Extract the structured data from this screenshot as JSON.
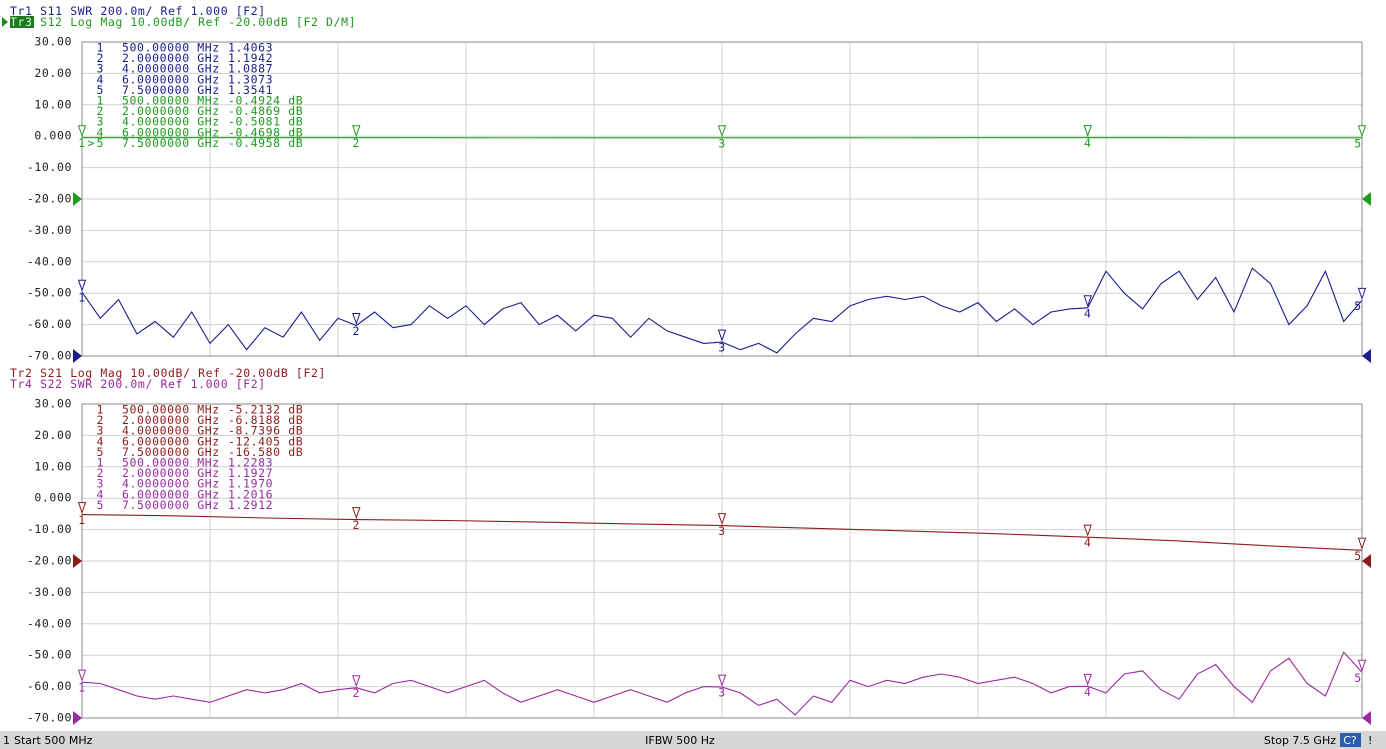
{
  "chart_data": [
    {
      "type": "line",
      "xlim": [
        0.5,
        7.5
      ],
      "ylim": [
        -70,
        30
      ],
      "yticks": [
        {
          "value": 30,
          "label": "30.00"
        },
        {
          "value": 20,
          "label": "20.00"
        },
        {
          "value": 10,
          "label": "10.00"
        },
        {
          "value": 0,
          "label": "0.000"
        },
        {
          "value": -10,
          "label": "-10.00"
        },
        {
          "value": -20,
          "label": "-20.00"
        },
        {
          "value": -30,
          "label": "-30.00"
        },
        {
          "value": -40,
          "label": "-40.00"
        },
        {
          "value": -50,
          "label": "-50.00"
        },
        {
          "value": -60,
          "label": "-60.00"
        },
        {
          "value": -70,
          "label": "-70.00"
        }
      ],
      "y2lim": [
        1.0,
        3.0
      ],
      "grid": true,
      "series": [
        {
          "trace": "Tr1",
          "name": "S11",
          "format": "SWR 200.0m/ Ref 1.000 [F2]",
          "color": "#1c1c8c",
          "axis": "y2",
          "ref": 1.0,
          "x": [
            0.5,
            0.6,
            0.7,
            0.8,
            0.9,
            1.0,
            1.1,
            1.2,
            1.3,
            1.4,
            1.5,
            1.6,
            1.7,
            1.8,
            1.9,
            2.0,
            2.1,
            2.2,
            2.3,
            2.4,
            2.5,
            2.6,
            2.7,
            2.8,
            2.9,
            3.0,
            3.1,
            3.2,
            3.3,
            3.4,
            3.5,
            3.6,
            3.7,
            3.8,
            3.9,
            4.0,
            4.1,
            4.2,
            4.3,
            4.4,
            4.5,
            4.6,
            4.7,
            4.8,
            4.9,
            5.0,
            5.1,
            5.2,
            5.3,
            5.4,
            5.5,
            5.6,
            5.7,
            5.8,
            5.9,
            6.0,
            6.1,
            6.2,
            6.3,
            6.4,
            6.5,
            6.6,
            6.7,
            6.8,
            6.9,
            7.0,
            7.1,
            7.2,
            7.3,
            7.4,
            7.5
          ],
          "values": [
            1.4063,
            1.24,
            1.36,
            1.14,
            1.22,
            1.12,
            1.28,
            1.08,
            1.2,
            1.04,
            1.18,
            1.12,
            1.28,
            1.1,
            1.24,
            1.1942,
            1.28,
            1.18,
            1.2,
            1.32,
            1.24,
            1.32,
            1.2,
            1.3,
            1.34,
            1.2,
            1.26,
            1.16,
            1.26,
            1.24,
            1.12,
            1.24,
            1.16,
            1.12,
            1.08,
            1.0887,
            1.04,
            1.08,
            1.02,
            1.14,
            1.24,
            1.22,
            1.32,
            1.36,
            1.38,
            1.36,
            1.38,
            1.32,
            1.28,
            1.34,
            1.22,
            1.3,
            1.2,
            1.28,
            1.3,
            1.3073,
            1.54,
            1.4,
            1.3,
            1.46,
            1.54,
            1.36,
            1.5,
            1.28,
            1.56,
            1.46,
            1.2,
            1.32,
            1.54,
            1.22,
            1.3541
          ],
          "markers": [
            {
              "id": "1",
              "freq": "500.00000 MHz",
              "value": "1.4063"
            },
            {
              "id": "2",
              "freq": "2.0000000 GHz",
              "value": "1.1942"
            },
            {
              "id": "3",
              "freq": "4.0000000 GHz",
              "value": "1.0887"
            },
            {
              "id": "4",
              "freq": "6.0000000 GHz",
              "value": "1.3073"
            },
            {
              "id": "5",
              "freq": "7.5000000 GHz",
              "value": "1.3541"
            }
          ]
        },
        {
          "trace": "Tr3",
          "name": "S12",
          "format": "Log Mag 10.00dB/ Ref -20.00dB [F2 D/M]",
          "color": "#1f9a1f",
          "active": true,
          "ref": -20,
          "active_prefix": ">",
          "x": [
            0.5,
            2.0,
            4.0,
            6.0,
            7.5
          ],
          "values": [
            -0.4924,
            -0.4869,
            -0.5081,
            -0.4698,
            -0.4958
          ],
          "markers": [
            {
              "id": "1",
              "freq": "500.00000 MHz",
              "value": "-0.4924 dB"
            },
            {
              "id": "2",
              "freq": "2.0000000 GHz",
              "value": "-0.4869 dB"
            },
            {
              "id": "3",
              "freq": "4.0000000 GHz",
              "value": "-0.5081 dB"
            },
            {
              "id": "4",
              "freq": "6.0000000 GHz",
              "value": "-0.4698 dB"
            },
            {
              "id": "5",
              "freq": "7.5000000 GHz",
              "value": "-0.4958 dB"
            }
          ]
        }
      ]
    },
    {
      "type": "line",
      "xlim": [
        0.5,
        7.5
      ],
      "ylim": [
        -70,
        30
      ],
      "yticks": [
        {
          "value": 30,
          "label": "30.00"
        },
        {
          "value": 20,
          "label": "20.00"
        },
        {
          "value": 10,
          "label": "10.00"
        },
        {
          "value": 0,
          "label": "0.000"
        },
        {
          "value": -10,
          "label": "-10.00"
        },
        {
          "value": -20,
          "label": "-20.00"
        },
        {
          "value": -30,
          "label": "-30.00"
        },
        {
          "value": -40,
          "label": "-40.00"
        },
        {
          "value": -50,
          "label": "-50.00"
        },
        {
          "value": -60,
          "label": "-60.00"
        },
        {
          "value": -70,
          "label": "-70.00"
        }
      ],
      "y2lim": [
        1.0,
        3.0
      ],
      "grid": true,
      "series": [
        {
          "trace": "Tr2",
          "name": "S21",
          "format": "Log Mag 10.00dB/ Ref -20.00dB [F2]",
          "color": "#8c1c1c",
          "ref": -20,
          "x": [
            0.5,
            1.0,
            1.5,
            2.0,
            2.5,
            3.0,
            3.5,
            4.0,
            4.5,
            5.0,
            5.5,
            6.0,
            6.5,
            7.0,
            7.5
          ],
          "values": [
            -5.2132,
            -5.6,
            -6.3,
            -6.8188,
            -7.1,
            -7.6,
            -8.2,
            -8.7396,
            -9.6,
            -10.4,
            -11.3,
            -12.405,
            -13.6,
            -15.2,
            -16.58
          ],
          "markers": [
            {
              "id": "1",
              "freq": "500.00000 MHz",
              "value": "-5.2132 dB"
            },
            {
              "id": "2",
              "freq": "2.0000000 GHz",
              "value": "-6.8188 dB"
            },
            {
              "id": "3",
              "freq": "4.0000000 GHz",
              "value": "-8.7396 dB"
            },
            {
              "id": "4",
              "freq": "6.0000000 GHz",
              "value": "-12.405 dB"
            },
            {
              "id": "5",
              "freq": "7.5000000 GHz",
              "value": "-16.580 dB"
            }
          ]
        },
        {
          "trace": "Tr4",
          "name": "S22",
          "format": "SWR 200.0m/ Ref 1.000 [F2]",
          "color": "#9a2aa2",
          "axis": "y2",
          "ref": 1.0,
          "x": [
            0.5,
            0.6,
            0.7,
            0.8,
            0.9,
            1.0,
            1.1,
            1.2,
            1.3,
            1.4,
            1.5,
            1.6,
            1.7,
            1.8,
            1.9,
            2.0,
            2.1,
            2.2,
            2.3,
            2.4,
            2.5,
            2.6,
            2.7,
            2.8,
            2.9,
            3.0,
            3.1,
            3.2,
            3.3,
            3.4,
            3.5,
            3.6,
            3.7,
            3.8,
            3.9,
            4.0,
            4.1,
            4.2,
            4.3,
            4.4,
            4.5,
            4.6,
            4.7,
            4.8,
            4.9,
            5.0,
            5.1,
            5.2,
            5.3,
            5.4,
            5.5,
            5.6,
            5.7,
            5.8,
            5.9,
            6.0,
            6.1,
            6.2,
            6.3,
            6.4,
            6.5,
            6.6,
            6.7,
            6.8,
            6.9,
            7.0,
            7.1,
            7.2,
            7.3,
            7.4,
            7.5
          ],
          "values": [
            1.2283,
            1.22,
            1.18,
            1.14,
            1.12,
            1.14,
            1.12,
            1.1,
            1.14,
            1.18,
            1.16,
            1.18,
            1.22,
            1.16,
            1.18,
            1.1927,
            1.16,
            1.22,
            1.24,
            1.2,
            1.16,
            1.2,
            1.24,
            1.16,
            1.1,
            1.14,
            1.18,
            1.14,
            1.1,
            1.14,
            1.18,
            1.14,
            1.1,
            1.16,
            1.2,
            1.197,
            1.16,
            1.08,
            1.12,
            1.02,
            1.14,
            1.1,
            1.24,
            1.2,
            1.24,
            1.22,
            1.26,
            1.28,
            1.26,
            1.22,
            1.24,
            1.26,
            1.22,
            1.16,
            1.2,
            1.2016,
            1.16,
            1.28,
            1.3,
            1.18,
            1.12,
            1.28,
            1.34,
            1.2,
            1.1,
            1.3,
            1.38,
            1.22,
            1.14,
            1.42,
            1.2912
          ],
          "markers": [
            {
              "id": "1",
              "freq": "500.00000 MHz",
              "value": "1.2283"
            },
            {
              "id": "2",
              "freq": "2.0000000 GHz",
              "value": "1.1927"
            },
            {
              "id": "3",
              "freq": "4.0000000 GHz",
              "value": "1.1970"
            },
            {
              "id": "4",
              "freq": "6.0000000 GHz",
              "value": "1.2016"
            },
            {
              "id": "5",
              "freq": "7.5000000 GHz",
              "value": "1.2912"
            }
          ]
        }
      ]
    }
  ],
  "status": {
    "channel": "1",
    "start": "Start 500 MHz",
    "ifbw": "IFBW 500 Hz",
    "stop": "Stop 7.5 GHz",
    "badge": "C?",
    "alert": "!"
  }
}
